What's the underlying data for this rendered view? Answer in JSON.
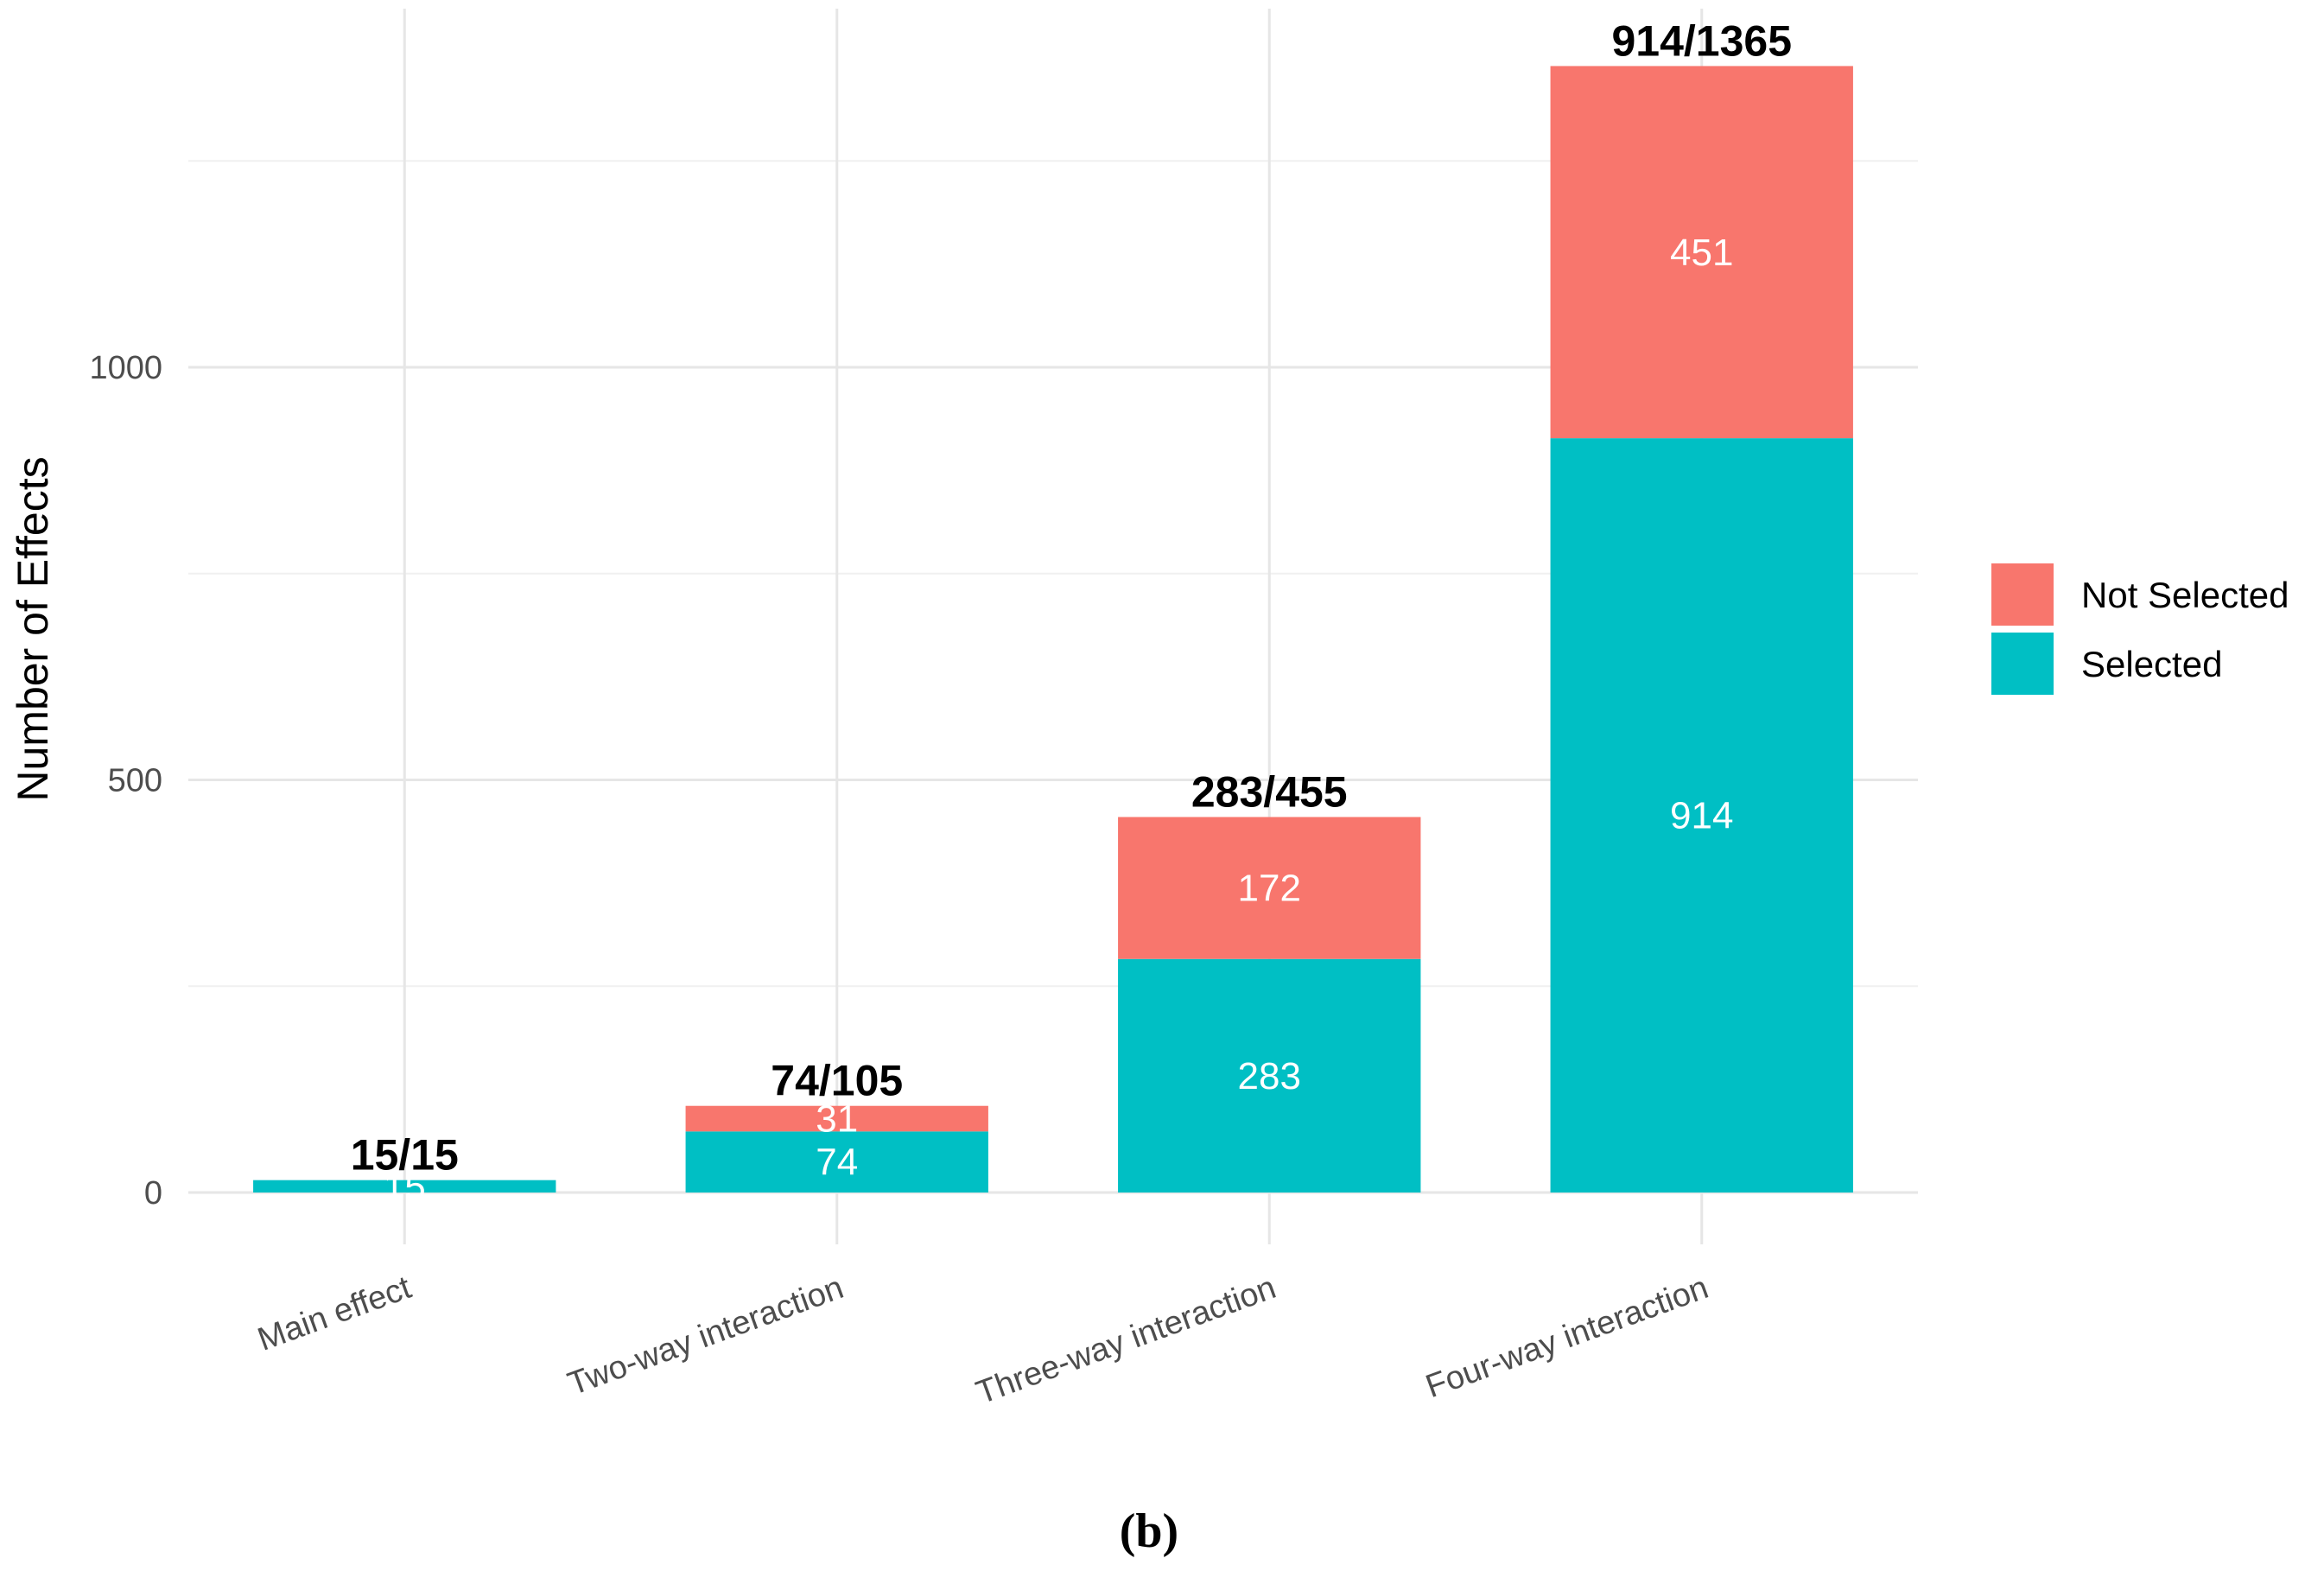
{
  "chart_data": {
    "type": "bar",
    "stacked": true,
    "categories": [
      "Main effect",
      "Two-way interaction",
      "Three-way interaction",
      "Four-way interaction"
    ],
    "series": [
      {
        "name": "Selected",
        "values": [
          15,
          74,
          283,
          914
        ],
        "color": "#00BFC4"
      },
      {
        "name": "Not Selected",
        "values": [
          0,
          31,
          172,
          451
        ],
        "color": "#F8766D"
      }
    ],
    "segment_labels": {
      "Selected": [
        "15",
        "74",
        "283",
        "914"
      ],
      "Not Selected": [
        "",
        "31",
        "172",
        "451"
      ]
    },
    "total_labels": [
      "15/15",
      "74/105",
      "283/455",
      "914/1365"
    ],
    "ylabel": "Number of Effects",
    "xlabel": "",
    "ylim": [
      -60,
      1375
    ],
    "yticks": [
      0,
      500,
      1000
    ],
    "y_minor_ticks": [
      250,
      750,
      1250
    ],
    "grid": true,
    "legend": {
      "position": "right",
      "entries": [
        {
          "label": "Not Selected",
          "color": "#F8766D"
        },
        {
          "label": "Selected",
          "color": "#00BFC4"
        }
      ]
    },
    "x_tick_rotation": "angled"
  },
  "caption": "(b)"
}
